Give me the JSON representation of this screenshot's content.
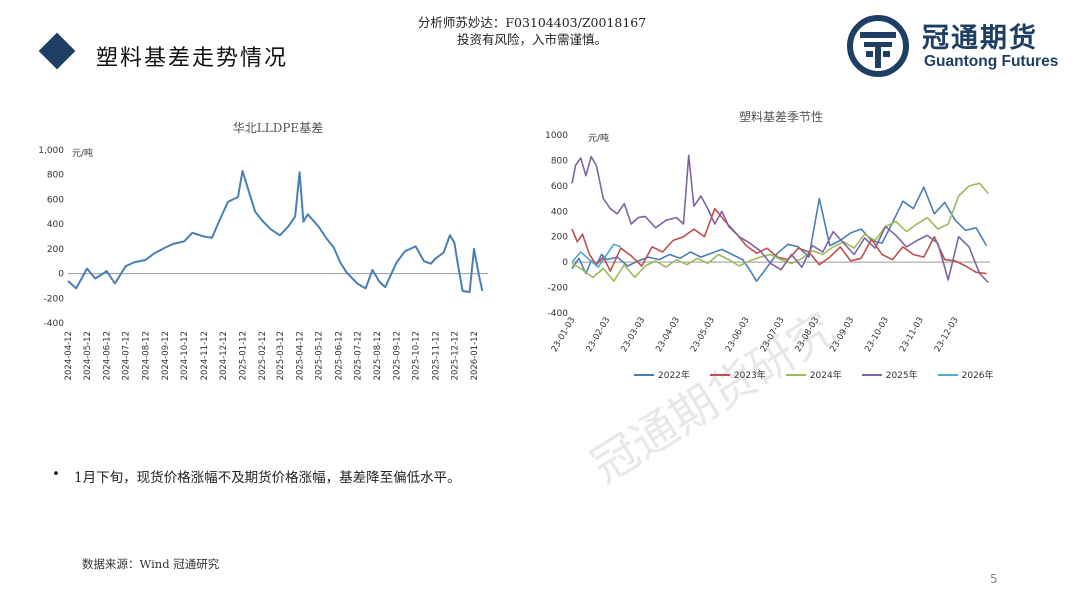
{
  "header": {
    "title": "塑料基差走势情况",
    "analyst_line1": "分析师苏妙达：F03104403/Z0018167",
    "analyst_line2": "投资有风险，入市需谨慎。"
  },
  "logo": {
    "name_cn": "冠通期货",
    "name_en": "Guantong Futures",
    "color": "#1f3e63"
  },
  "watermark": "冠通期货研究",
  "bullet_text": "1月下旬，现货价格涨幅不及期货价格涨幅，基差降至偏低水平。",
  "source_text": "数据来源：Wind 冠通研究",
  "page_number": "5",
  "chart_data": [
    {
      "type": "line",
      "title": "华北LLDPE基差",
      "ylabel": "元/吨",
      "ylim": [
        -400,
        1000
      ],
      "yticks": [
        "-400",
        "-200",
        "0",
        "200",
        "400",
        "600",
        "800",
        "1,000"
      ],
      "xticks": [
        "2024-04-12",
        "2024-05-12",
        "2024-06-12",
        "2024-07-12",
        "2024-08-12",
        "2024-09-12",
        "2024-10-12",
        "2024-11-12",
        "2024-12-12",
        "2025-01-12",
        "2025-02-12",
        "2025-03-12",
        "2025-04-12",
        "2025-05-12",
        "2025-06-12",
        "2025-07-12",
        "2025-08-12",
        "2025-09-12",
        "2025-10-12",
        "2025-11-12",
        "2025-12-12",
        "2026-01-12"
      ],
      "series": [
        {
          "color": "#4a7fb5",
          "x": [
            "2024-04-12",
            "2024-04-25",
            "2024-05-12",
            "2024-05-25",
            "2024-06-12",
            "2024-06-25",
            "2024-07-12",
            "2024-07-25",
            "2024-08-12",
            "2024-08-25",
            "2024-09-12",
            "2024-09-25",
            "2024-10-12",
            "2024-10-25",
            "2024-11-12",
            "2024-11-25",
            "2024-12-05",
            "2024-12-20",
            "2025-01-05",
            "2025-01-12",
            "2025-01-20",
            "2025-02-01",
            "2025-02-12",
            "2025-02-25",
            "2025-03-12",
            "2025-03-25",
            "2025-04-05",
            "2025-04-12",
            "2025-04-18",
            "2025-04-25",
            "2025-05-12",
            "2025-05-25",
            "2025-06-05",
            "2025-06-15",
            "2025-06-25",
            "2025-07-12",
            "2025-07-25",
            "2025-08-05",
            "2025-08-15",
            "2025-08-25",
            "2025-09-12",
            "2025-09-25",
            "2025-10-12",
            "2025-10-25",
            "2025-11-05",
            "2025-11-12",
            "2025-11-25",
            "2025-12-05",
            "2025-12-12",
            "2025-12-18",
            "2025-12-25",
            "2026-01-05",
            "2026-01-12",
            "2026-01-20",
            "2026-01-25"
          ],
          "y": [
            -60,
            -120,
            40,
            -40,
            20,
            -80,
            60,
            90,
            110,
            160,
            210,
            240,
            260,
            330,
            300,
            290,
            410,
            580,
            620,
            830,
            700,
            500,
            430,
            360,
            310,
            380,
            460,
            820,
            420,
            480,
            380,
            280,
            210,
            90,
            10,
            -80,
            -120,
            30,
            -60,
            -110,
            90,
            180,
            220,
            100,
            80,
            120,
            170,
            310,
            250,
            60,
            -140,
            -150,
            200,
            -20,
            -140
          ]
        }
      ]
    },
    {
      "type": "line",
      "title": "塑料基差季节性",
      "ylabel": "元/吨",
      "ylim": [
        -400,
        1000
      ],
      "yticks": [
        "-400",
        "-200",
        "0",
        "200",
        "400",
        "600",
        "800",
        "1000"
      ],
      "xticks": [
        "23-01-03",
        "23-02-03",
        "23-03-03",
        "23-04-03",
        "23-05-03",
        "23-06-03",
        "23-07-03",
        "23-08-03",
        "23-09-03",
        "23-10-03",
        "23-11-03",
        "23-12-03"
      ],
      "series": [
        {
          "name": "2022年",
          "color": "#4a7fb5",
          "x": [
            0,
            0.2,
            0.4,
            0.55,
            0.7,
            0.85,
            1,
            1.3,
            1.6,
            1.9,
            2.2,
            2.5,
            2.8,
            3.1,
            3.4,
            3.7,
            4,
            4.3,
            4.6,
            4.9,
            5.1,
            5.3,
            5.6,
            5.9,
            6.2,
            6.5,
            6.8,
            7.1,
            7.4,
            7.7,
            8,
            8.3,
            8.6,
            8.9,
            9.2,
            9.5,
            9.8,
            10.1,
            10.4,
            10.7,
            11,
            11.3,
            11.6,
            11.9
          ],
          "y": [
            -50,
            30,
            -90,
            10,
            -20,
            60,
            20,
            40,
            -30,
            10,
            40,
            20,
            60,
            30,
            80,
            40,
            70,
            100,
            60,
            20,
            -60,
            -150,
            -40,
            70,
            140,
            120,
            40,
            500,
            130,
            170,
            230,
            260,
            170,
            150,
            310,
            480,
            420,
            590,
            380,
            470,
            330,
            250,
            270,
            130
          ]
        },
        {
          "name": "2023年",
          "color": "#c0504d",
          "x": [
            0,
            0.15,
            0.3,
            0.5,
            0.7,
            0.9,
            1.1,
            1.4,
            1.7,
            2,
            2.3,
            2.6,
            2.9,
            3.2,
            3.5,
            3.8,
            4.1,
            4.4,
            4.7,
            5,
            5.3,
            5.6,
            5.9,
            6.2,
            6.5,
            6.8,
            7.1,
            7.4,
            7.7,
            8,
            8.3,
            8.6,
            8.9,
            9.2,
            9.5,
            9.8,
            10.1,
            10.4,
            10.7,
            11,
            11.3,
            11.6,
            11.9
          ],
          "y": [
            260,
            160,
            220,
            60,
            -20,
            40,
            -70,
            110,
            50,
            -30,
            120,
            80,
            170,
            200,
            260,
            200,
            420,
            320,
            230,
            130,
            70,
            110,
            40,
            20,
            110,
            80,
            -20,
            40,
            120,
            10,
            30,
            180,
            60,
            20,
            120,
            60,
            40,
            200,
            20,
            10,
            -30,
            -80,
            -90
          ]
        },
        {
          "name": "2024年",
          "color": "#9bbb59",
          "x": [
            0,
            0.3,
            0.6,
            0.9,
            1.2,
            1.5,
            1.8,
            2.1,
            2.4,
            2.7,
            3,
            3.3,
            3.6,
            3.9,
            4.2,
            4.5,
            4.8,
            5.1,
            5.4,
            5.7,
            6,
            6.3,
            6.6,
            6.9,
            7.2,
            7.5,
            7.8,
            8.1,
            8.4,
            8.7,
            9,
            9.3,
            9.6,
            9.9,
            10.2,
            10.5,
            10.8,
            11.1,
            11.4,
            11.7,
            11.95
          ],
          "y": [
            -10,
            -60,
            -120,
            -50,
            -150,
            -20,
            -120,
            -30,
            10,
            -40,
            20,
            -20,
            30,
            -10,
            60,
            20,
            -30,
            10,
            40,
            60,
            20,
            -10,
            30,
            90,
            60,
            120,
            160,
            110,
            220,
            170,
            280,
            320,
            240,
            300,
            350,
            260,
            300,
            520,
            600,
            620,
            540
          ]
        },
        {
          "name": "2025年",
          "color": "#8064a2",
          "x": [
            0,
            0.1,
            0.25,
            0.4,
            0.55,
            0.7,
            0.9,
            1.1,
            1.3,
            1.5,
            1.7,
            1.9,
            2.1,
            2.4,
            2.7,
            3,
            3.2,
            3.35,
            3.5,
            3.7,
            3.9,
            4.1,
            4.3,
            4.5,
            4.8,
            5.1,
            5.4,
            5.7,
            6,
            6.3,
            6.6,
            6.9,
            7.2,
            7.5,
            7.8,
            8.1,
            8.4,
            8.7,
            9,
            9.3,
            9.6,
            9.9,
            10.2,
            10.5,
            10.8,
            11.1,
            11.4,
            11.7,
            11.95
          ],
          "y": [
            620,
            760,
            820,
            680,
            830,
            760,
            500,
            420,
            380,
            460,
            300,
            350,
            360,
            270,
            330,
            350,
            300,
            840,
            440,
            520,
            420,
            300,
            400,
            280,
            200,
            150,
            90,
            -10,
            -60,
            60,
            -40,
            130,
            80,
            240,
            150,
            60,
            190,
            110,
            280,
            210,
            120,
            170,
            210,
            150,
            -140,
            200,
            120,
            -90,
            -160
          ]
        },
        {
          "name": "2026年",
          "color": "#4bacc6",
          "x": [
            0,
            0.25,
            0.5,
            0.75,
            1,
            1.2,
            1.4
          ],
          "y": [
            0,
            80,
            20,
            -40,
            60,
            140,
            120
          ]
        }
      ]
    }
  ]
}
